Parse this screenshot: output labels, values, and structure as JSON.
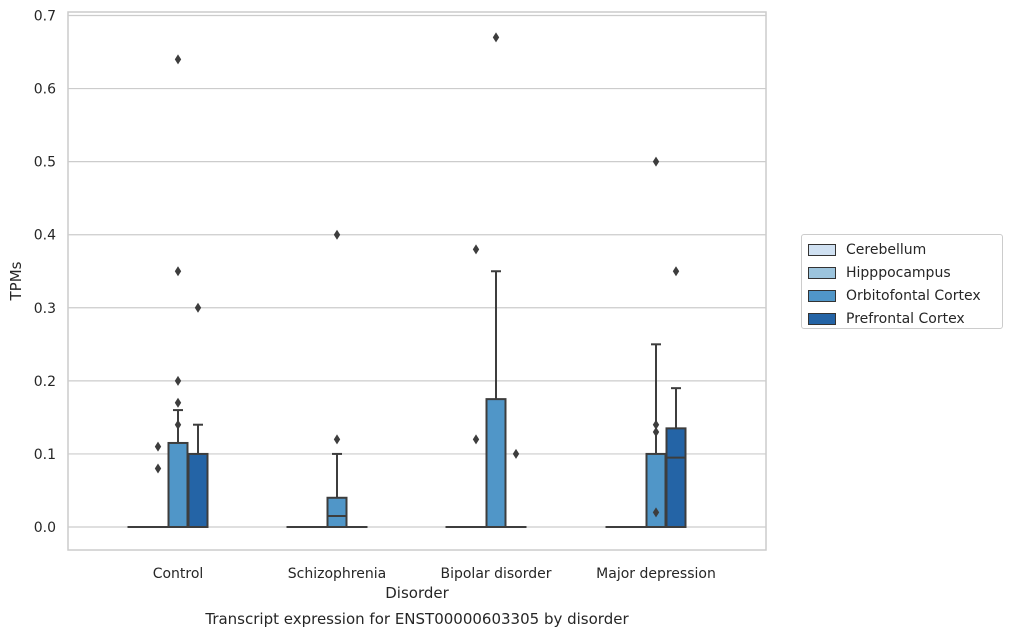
{
  "caption": "Transcript expression for ENST00000603305 by disorder",
  "chart_data": {
    "type": "box",
    "xlabel": "Disorder",
    "ylabel": "TPMs",
    "ylim": [
      -0.032,
      0.705
    ],
    "yticks": [
      "0.0",
      "0.1",
      "0.2",
      "0.3",
      "0.4",
      "0.5",
      "0.6",
      "0.7"
    ],
    "grid": true,
    "legend_position": "right",
    "categories": [
      "Control",
      "Schizophrenia",
      "Bipolar disorder",
      "Major depression"
    ],
    "series": [
      {
        "name": "Cerebellum",
        "color": "#d0e1f2",
        "boxes": [
          {
            "q1": 0,
            "median": 0,
            "q3": 0,
            "whisker_low": 0,
            "whisker_high": 0,
            "outliers": []
          },
          {
            "q1": 0,
            "median": 0,
            "q3": 0,
            "whisker_low": 0,
            "whisker_high": 0,
            "outliers": []
          },
          {
            "q1": 0,
            "median": 0,
            "q3": 0,
            "whisker_low": 0,
            "whisker_high": 0,
            "outliers": []
          },
          {
            "q1": 0,
            "median": 0,
            "q3": 0,
            "whisker_low": 0,
            "whisker_high": 0,
            "outliers": []
          }
        ]
      },
      {
        "name": "Hipppocampus",
        "color": "#9cc4dd",
        "boxes": [
          {
            "q1": 0,
            "median": 0,
            "q3": 0,
            "whisker_low": 0,
            "whisker_high": 0,
            "outliers": [
              0.08,
              0.11
            ]
          },
          {
            "q1": 0,
            "median": 0,
            "q3": 0,
            "whisker_low": 0,
            "whisker_high": 0,
            "outliers": []
          },
          {
            "q1": 0,
            "median": 0,
            "q3": 0,
            "whisker_low": 0,
            "whisker_high": 0,
            "outliers": [
              0.12,
              0.38
            ]
          },
          {
            "q1": 0,
            "median": 0,
            "q3": 0,
            "whisker_low": 0,
            "whisker_high": 0,
            "outliers": []
          }
        ]
      },
      {
        "name": "Orbitofontal Cortex",
        "color": "#5096c8",
        "boxes": [
          {
            "q1": 0,
            "median": 0,
            "q3": 0.115,
            "whisker_low": 0,
            "whisker_high": 0.16,
            "outliers": [
              0.14,
              0.17,
              0.2,
              0.35,
              0.64
            ]
          },
          {
            "q1": 0,
            "median": 0.015,
            "q3": 0.04,
            "whisker_low": 0,
            "whisker_high": 0.1,
            "outliers": [
              0.12,
              0.4
            ]
          },
          {
            "q1": 0,
            "median": 0,
            "q3": 0.175,
            "whisker_low": 0,
            "whisker_high": 0.35,
            "outliers": [
              0.67
            ]
          },
          {
            "q1": 0,
            "median": 0,
            "q3": 0.1,
            "whisker_low": 0,
            "whisker_high": 0.25,
            "outliers": [
              0.02,
              0.13,
              0.14,
              0.5
            ]
          }
        ]
      },
      {
        "name": "Prefrontal Cortex",
        "color": "#2464a6",
        "boxes": [
          {
            "q1": 0,
            "median": 0,
            "q3": 0.1,
            "whisker_low": 0,
            "whisker_high": 0.14,
            "outliers": [
              0.3
            ]
          },
          {
            "q1": 0,
            "median": 0,
            "q3": 0,
            "whisker_low": 0,
            "whisker_high": 0,
            "outliers": []
          },
          {
            "q1": 0,
            "median": 0,
            "q3": 0,
            "whisker_low": 0,
            "whisker_high": 0,
            "outliers": [
              0.1
            ]
          },
          {
            "q1": 0,
            "median": 0.095,
            "q3": 0.135,
            "whisker_low": 0,
            "whisker_high": 0.19,
            "outliers": [
              0.35
            ]
          }
        ]
      }
    ]
  }
}
